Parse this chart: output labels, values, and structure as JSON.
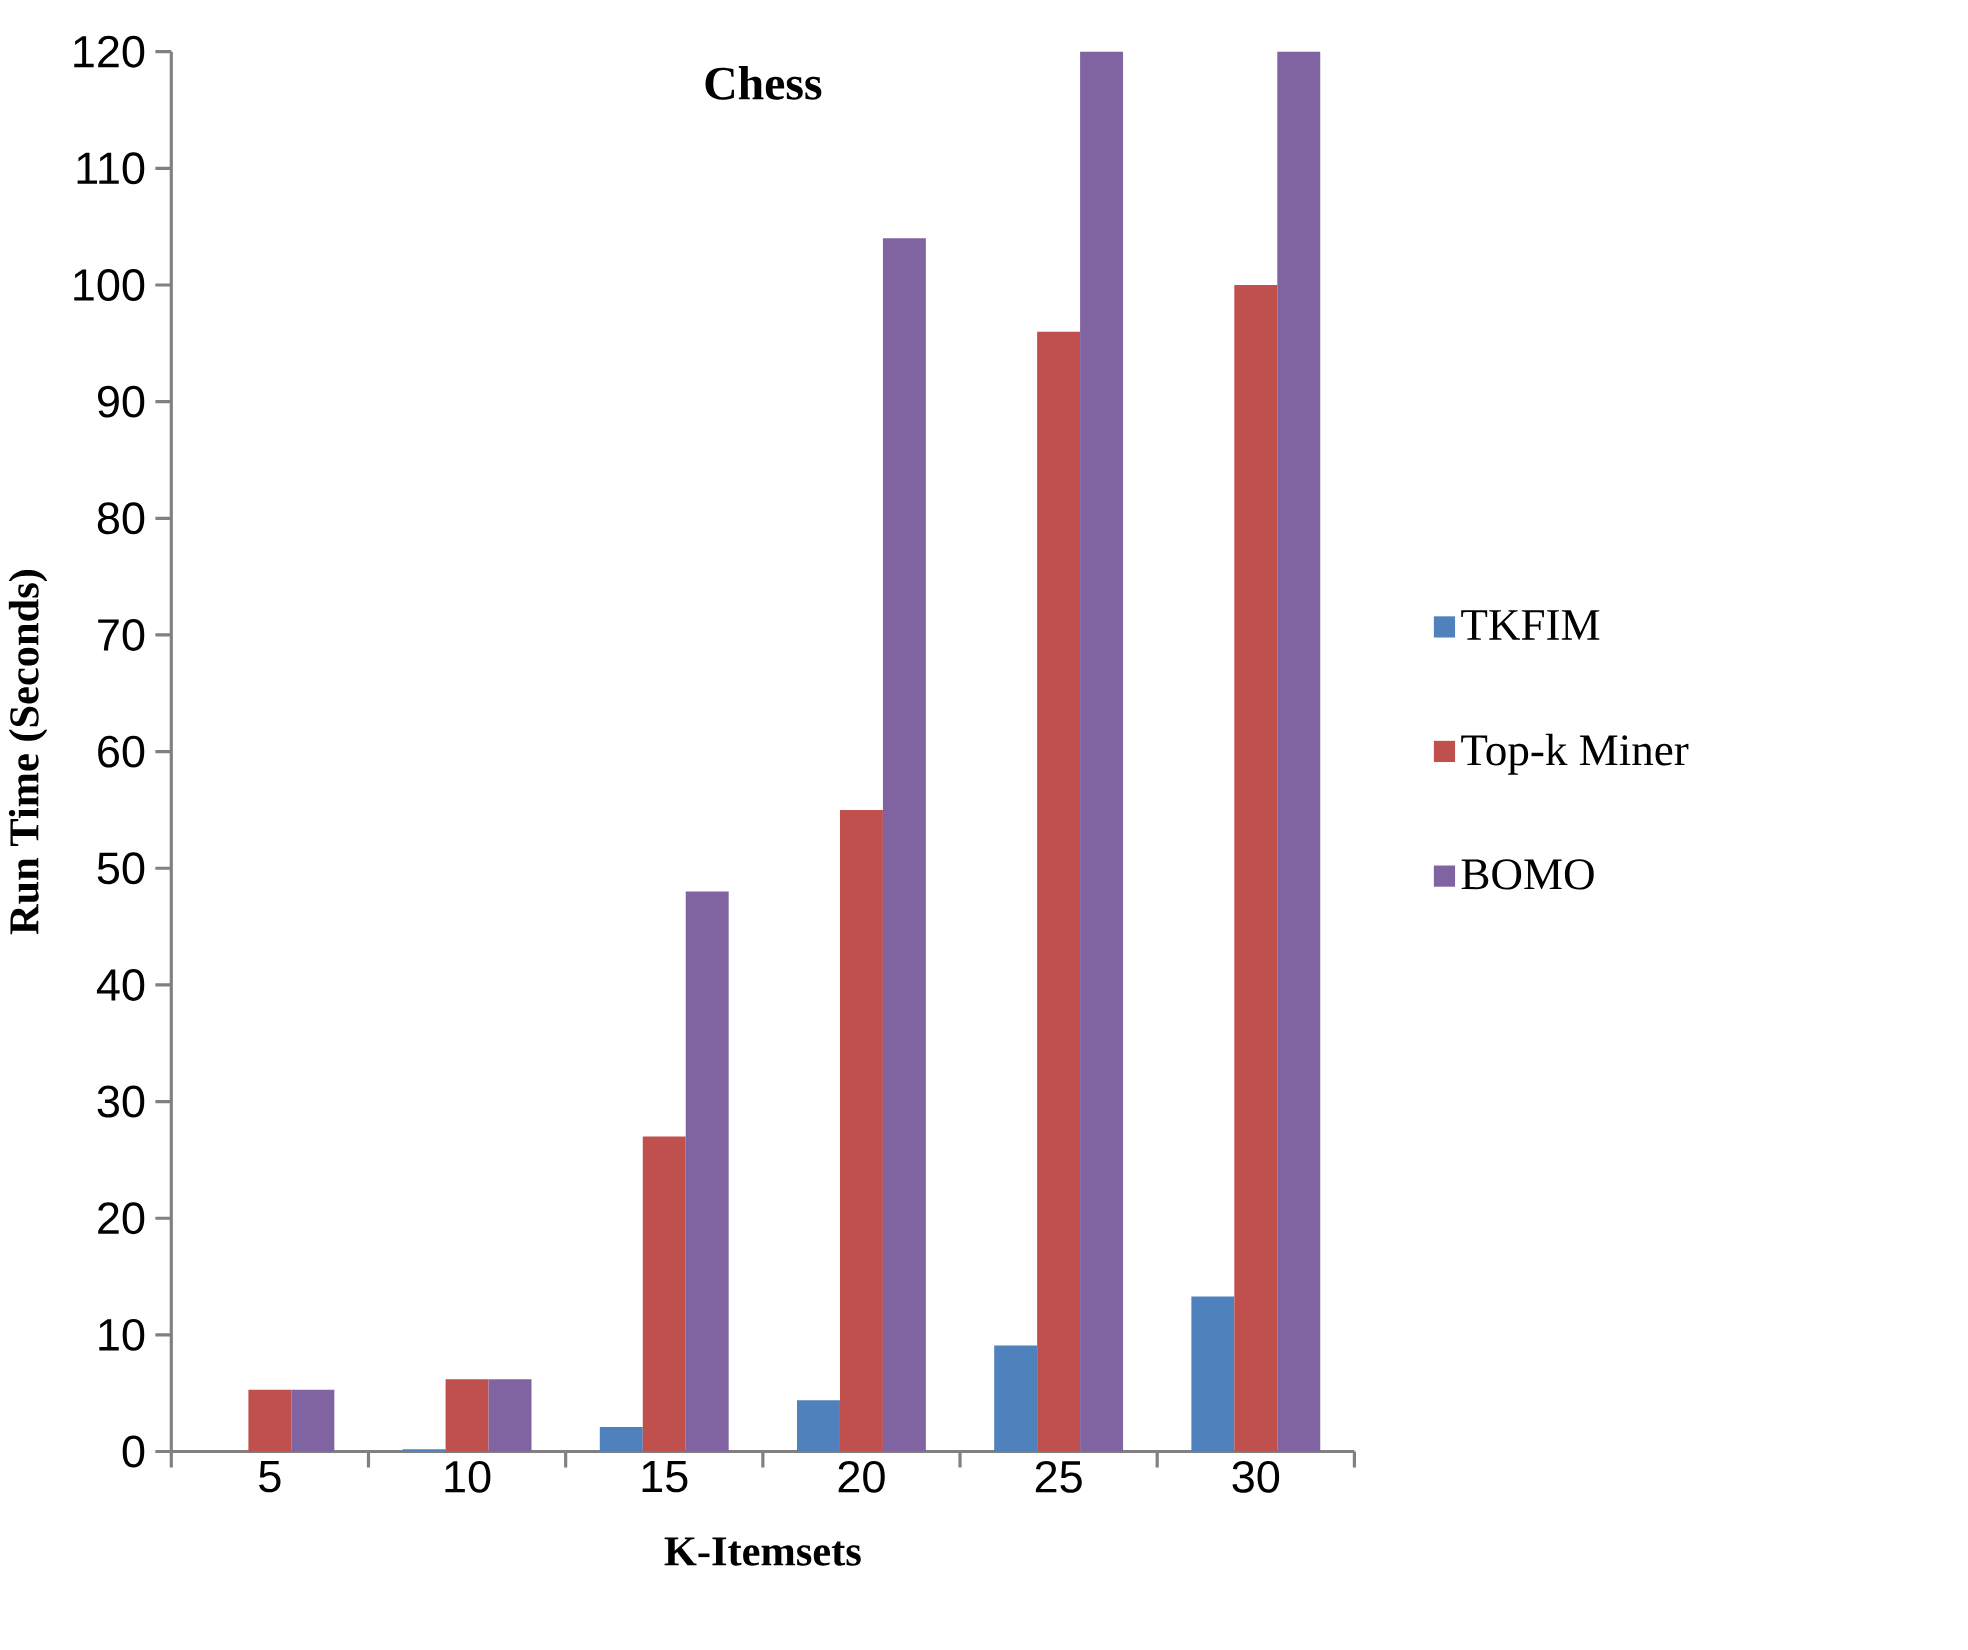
{
  "chart_data": {
    "type": "bar",
    "title": "Chess",
    "xlabel": "K-Itemsets",
    "ylabel": "Run Time (Seconds)",
    "categories": [
      "5",
      "10",
      "15",
      "20",
      "25",
      "30"
    ],
    "series": [
      {
        "name": "TKFIM",
        "color": "#4f81bd",
        "values": [
          null,
          0.2,
          2.1,
          4.4,
          9.1,
          13.3
        ]
      },
      {
        "name": "Top-k  Miner",
        "color": "#c0504d",
        "values": [
          5.3,
          6.2,
          27,
          55,
          96,
          100
        ]
      },
      {
        "name": "BOMO",
        "color": "#8064a2",
        "values": [
          5.3,
          6.2,
          48,
          104,
          120,
          120
        ]
      }
    ],
    "ylim": [
      0,
      120
    ],
    "yticks": [
      0,
      10,
      20,
      30,
      40,
      50,
      60,
      70,
      80,
      90,
      100,
      110,
      120
    ],
    "legend": "right"
  }
}
